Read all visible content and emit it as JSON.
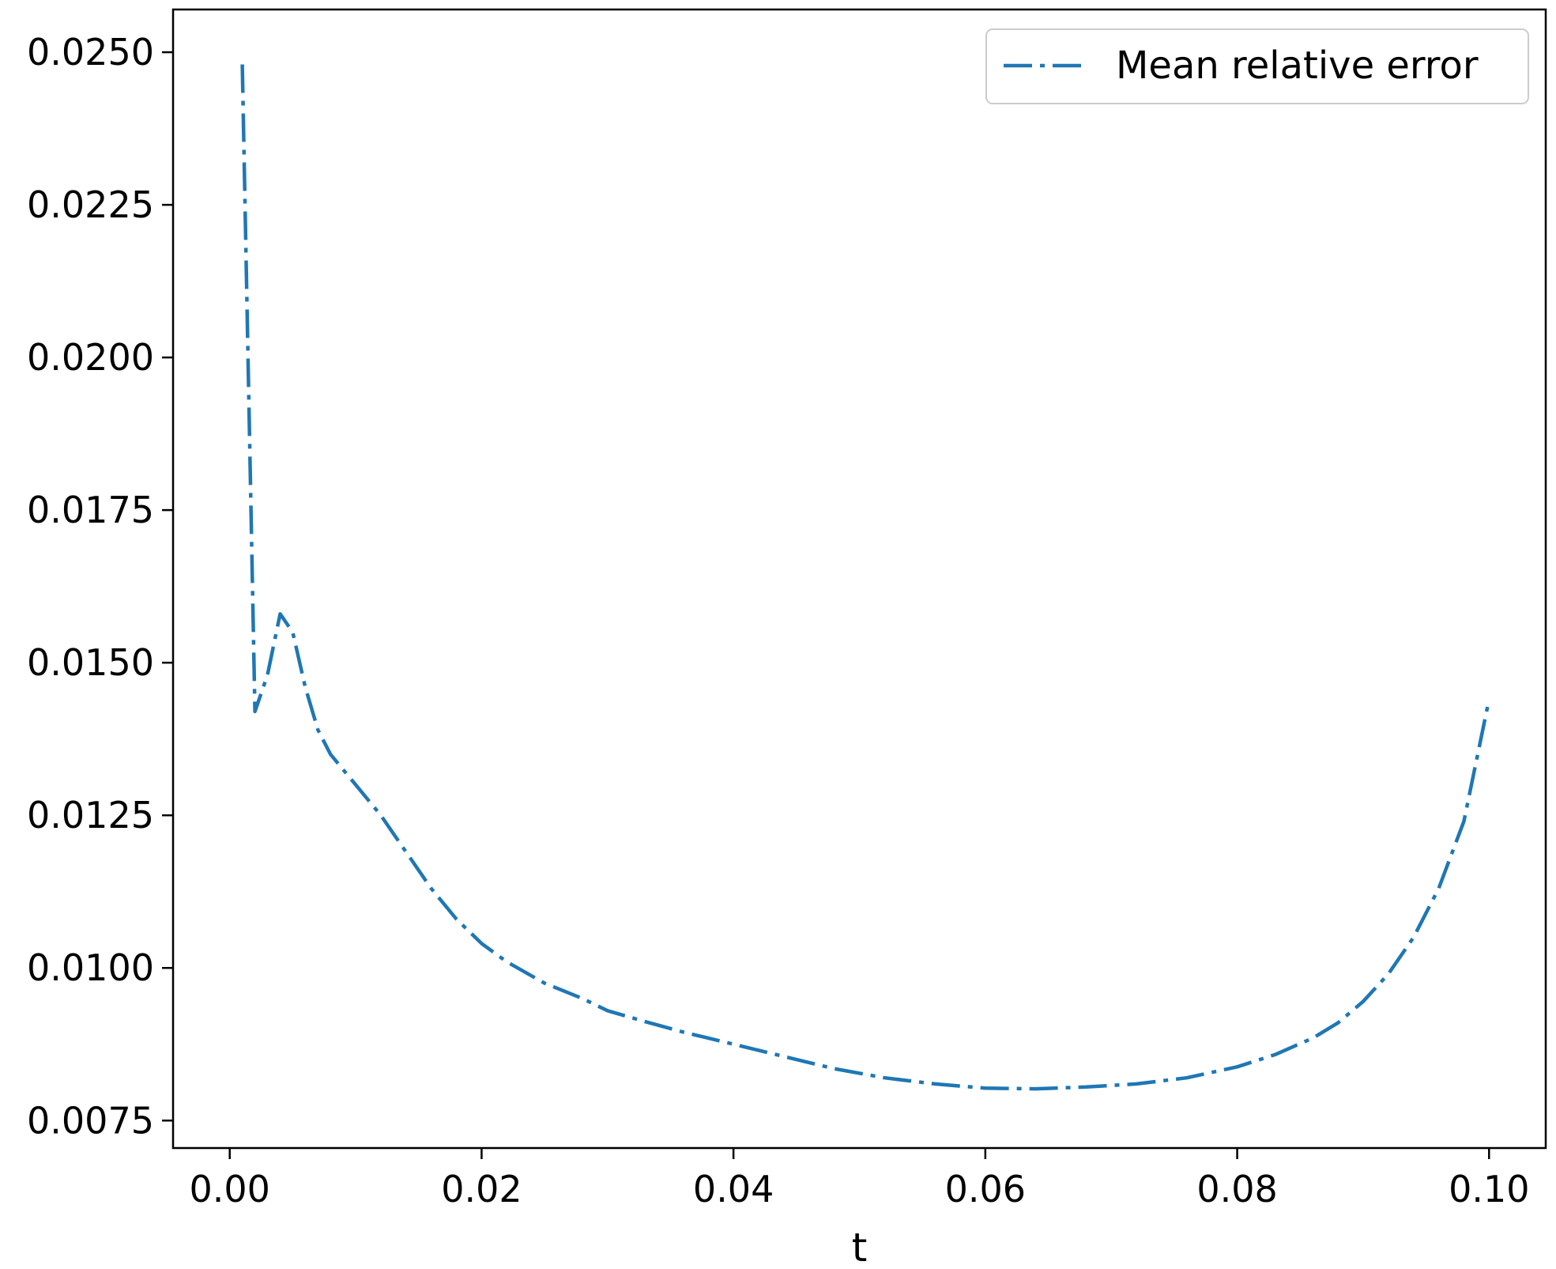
{
  "chart_data": {
    "type": "line",
    "xlabel": "t",
    "ylabel": "",
    "xlim": [
      -0.0045,
      0.1045
    ],
    "ylim": [
      0.00705,
      0.0257
    ],
    "xticks": [
      "0.00",
      "0.02",
      "0.04",
      "0.06",
      "0.08",
      "0.10"
    ],
    "xtick_values": [
      0.0,
      0.02,
      0.04,
      0.06,
      0.08,
      0.1
    ],
    "yticks": [
      "0.0075",
      "0.0100",
      "0.0125",
      "0.0150",
      "0.0175",
      "0.0200",
      "0.0225",
      "0.0250"
    ],
    "ytick_values": [
      0.0075,
      0.01,
      0.0125,
      0.015,
      0.0175,
      0.02,
      0.0225,
      0.025
    ],
    "grid": false,
    "legend_position": "top-right",
    "series": [
      {
        "name": "Mean relative error",
        "color": "#1f77b4",
        "linestyle": "dashdot",
        "x": [
          0.001,
          0.0015,
          0.002,
          0.003,
          0.004,
          0.005,
          0.006,
          0.007,
          0.008,
          0.01,
          0.012,
          0.014,
          0.016,
          0.018,
          0.02,
          0.022,
          0.025,
          0.028,
          0.03,
          0.033,
          0.036,
          0.04,
          0.044,
          0.048,
          0.052,
          0.056,
          0.06,
          0.064,
          0.068,
          0.072,
          0.076,
          0.08,
          0.083,
          0.086,
          0.088,
          0.09,
          0.092,
          0.094,
          0.096,
          0.098,
          0.1
        ],
        "y": [
          0.0248,
          0.0195,
          0.0142,
          0.0148,
          0.0158,
          0.0155,
          0.0146,
          0.0139,
          0.0135,
          0.013,
          0.0125,
          0.0119,
          0.0113,
          0.0108,
          0.0104,
          0.0101,
          0.00975,
          0.0095,
          0.0093,
          0.00912,
          0.00895,
          0.00875,
          0.00855,
          0.00835,
          0.0082,
          0.0081,
          0.00803,
          0.00802,
          0.00805,
          0.0081,
          0.0082,
          0.00838,
          0.00858,
          0.00885,
          0.0091,
          0.00945,
          0.0099,
          0.0105,
          0.0113,
          0.0124,
          0.0144
        ]
      }
    ]
  }
}
